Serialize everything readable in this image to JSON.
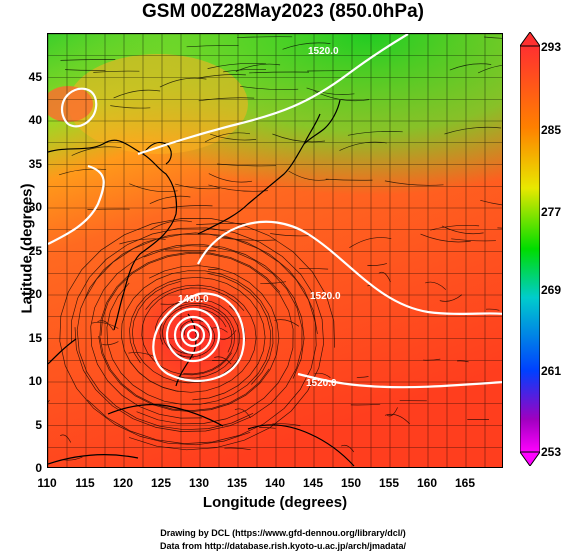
{
  "title": "GSM 00Z28May2023 (850.0hPa)",
  "x_axis": {
    "label": "Longitude (degrees)",
    "ticks": [
      "110",
      "115",
      "120",
      "125",
      "130",
      "135",
      "140",
      "145",
      "150",
      "155",
      "160",
      "165"
    ],
    "range": [
      110,
      170
    ]
  },
  "y_axis": {
    "label": "Latitude  (degrees)",
    "ticks": [
      "0",
      "5",
      "10",
      "15",
      "20",
      "25",
      "30",
      "35",
      "40",
      "45"
    ],
    "range": [
      0,
      50
    ]
  },
  "colorbar": {
    "labels": [
      "293",
      "285",
      "277",
      "269",
      "261",
      "253"
    ],
    "colors": [
      "#ff3030",
      "#ff8000",
      "#e8e800",
      "#00dd00",
      "#00cccc",
      "#0040ff",
      "#a000c0",
      "#ff00ff"
    ]
  },
  "contours": {
    "labels": [
      "1480.0",
      "1520.0",
      "1520.0",
      "1520.0"
    ],
    "color": "#ffffff"
  },
  "credits": {
    "line1": "Drawing by DCL (https://www.gfd-dennou.org/library/dcl/)",
    "line2": "Data from http://database.rish.kyoto-u.ac.jp/arch/jmadata/"
  }
}
